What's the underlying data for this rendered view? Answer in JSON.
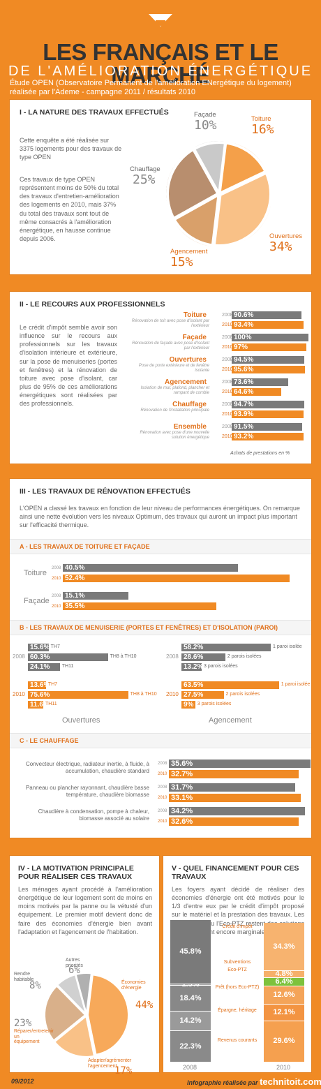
{
  "header": {
    "title_line1": "LES FRANÇAIS ET LE MARCHÉ",
    "title_line2": "DE L'AMÉLIORATION ÉNERGÉTIQUE",
    "subtitle_line1": "Étude OPEN (Observatoire Permanent de l'amélioration ENergétique du logement)",
    "subtitle_line2": "réalisée par l'Ademe - campagne 2011 / résultats 2010"
  },
  "section1": {
    "title": "I - LA NATURE DES TRAVAUX EFFECTUÉS",
    "para1": "Cette enquête a été réalisée sur 3375 logements pour des travaux de type OPEN",
    "para2": "Ces travaux de type OPEN représentent moins de 50% du total des travaux d'entretien-amélioration des logements en 2010, mais 37% du total des travaux sont tout de même consacrés à l'amélioration énergétique, en hausse continue depuis 2006."
  },
  "section2": {
    "title": "II - LE RECOURS AUX PROFESSIONNELS",
    "para": "Le crédit d'impôt semble avoir son influence sur le recours aux professionnels sur les travaux d'isolation intérieure et extérieure, sur la pose de menuiseries (portes et fenêtres) et la rénovation de toiture avec pose d'isolant, car plus de 95% de ces améliorations énergétiques sont réalisées par des professionnels.",
    "footnote": "Achats de prestations en %"
  },
  "section3": {
    "title": "III - LES TRAVAUX DE RÉNOVATION EFFECTUÉS",
    "intro": "L'OPEN a classé les travaux en fonction de leur niveau de performances énergétiques. On remarque ainsi une nette évolution vers les niveaux Optimum, des travaux qui auront un impact plus important sur l'efficacité thermique.",
    "sub_a": "A - LES TRAVAUX DE TOITURE ET FAÇADE",
    "sub_b": "B - LES TRAVAUX DE MENUISERIE (PORTES ET FENÊTRES) ET D'ISOLATION (PAROI)",
    "sub_c": "C - LE CHAUFFAGE",
    "ouvertures_label": "Ouvertures",
    "agencement_label": "Agencement"
  },
  "section4": {
    "title_line1": "IV - LA MOTIVATION PRINCIPALE",
    "title_line2": "POUR RÉALISER CES TRAVAUX",
    "para": "Les ménages ayant procédé à l'amélioration énergétique de leur logement sont de moins en moins motivés par la panne ou la vétusté d'un équipement. Le premier motif devient donc de faire des économies d'énergie bien avant l'adaptation et l'agencement de l'habitation."
  },
  "section5": {
    "title_line1": "V - QUEL FINANCEMENT POUR CES",
    "title_line2": "TRAVAUX",
    "para": "Les foyers ayant décidé de réaliser des économies d'énergie ont été motivés pour le 1/3 d'entre eux par le crédit d'impôt proposé sur le matériel et la prestation des travaux. Les subventions ou l'Eco-PTZ restent des solutions de financement encore marginales."
  },
  "footer": {
    "date": "09/2012",
    "credit": "Infographie réalisée par",
    "brand": "technitoit.com"
  },
  "colors": {
    "orange": "#f08a24",
    "dark_orange": "#e0701a",
    "grey": "#7a7a7a"
  },
  "chart_data": [
    {
      "id": "nature_travaux",
      "type": "pie",
      "labels": [
        "Toiture",
        "Ouvertures",
        "Agencement",
        "Chauffage",
        "Façade"
      ],
      "values": [
        16,
        34,
        15,
        25,
        10
      ],
      "display": [
        "16%",
        "34%",
        "15%",
        "25%",
        "10%"
      ]
    },
    {
      "id": "recours_pros",
      "type": "bar",
      "categories": [
        {
          "name": "Toiture",
          "desc": "Rénovation de toit avec pose d'isolant par l'extérieur"
        },
        {
          "name": "Façade",
          "desc": "Rénovation de façade avec pose d'isolant par l'extérieur"
        },
        {
          "name": "Ouvertures",
          "desc": "Pose de porte extérieure et de fenêtre isolante"
        },
        {
          "name": "Agencement",
          "desc": "Isolation de mur, plafond, plancher et rampant de comble"
        },
        {
          "name": "Chauffage",
          "desc": "Rénovation de l'installation principale"
        },
        {
          "name": "Ensemble",
          "desc": "Rénovation avec pose d'une nouvelle solution énergétique"
        }
      ],
      "series": [
        {
          "name": "2008",
          "values": [
            90.6,
            100,
            94.5,
            73.6,
            94.7,
            91.5
          ],
          "display": [
            "90.6%",
            "100%",
            "94.5%",
            "73.6%",
            "94.7%",
            "91.5%"
          ]
        },
        {
          "name": "2010",
          "values": [
            93.4,
            97,
            95.6,
            64.6,
            93.9,
            93.2
          ],
          "display": [
            "93.4%",
            "97%",
            "95.6%",
            "64.6%",
            "93.9%",
            "93.2%"
          ]
        }
      ],
      "xlabel": "Achats de prestations en %"
    },
    {
      "id": "toiture_facade",
      "type": "bar",
      "categories": [
        "Toiture",
        "Façade"
      ],
      "series": [
        {
          "name": "2008",
          "values": [
            40.5,
            15.1
          ],
          "display": [
            "40.5%",
            "15.1%"
          ]
        },
        {
          "name": "2010",
          "values": [
            52.4,
            35.5
          ],
          "display": [
            "52.4%",
            "35.5%"
          ]
        }
      ]
    },
    {
      "id": "ouvertures",
      "type": "bar",
      "categories": [
        "TH7",
        "TH8 à TH10",
        "TH11"
      ],
      "series": [
        {
          "name": "2008",
          "values": [
            15.6,
            60.3,
            24.1
          ],
          "display": [
            "15.6%",
            "60.3%",
            "24.1%"
          ]
        },
        {
          "name": "2010",
          "values": [
            13.6,
            75.6,
            11.6
          ],
          "display": [
            "13.6%",
            "75.6%",
            "11.6%"
          ]
        }
      ]
    },
    {
      "id": "agencement",
      "type": "bar",
      "categories": [
        "1 paroi isolée",
        "2 parois isolées",
        "3 parois isolées"
      ],
      "series": [
        {
          "name": "2008",
          "values": [
            58.2,
            28.6,
            13.2
          ],
          "display": [
            "58.2%",
            "28.6%",
            "13.2%"
          ]
        },
        {
          "name": "2010",
          "values": [
            63.5,
            27.5,
            9
          ],
          "display": [
            "63.5%",
            "27.5%",
            "9%"
          ]
        }
      ]
    },
    {
      "id": "chauffage",
      "type": "bar",
      "categories": [
        "Convecteur électrique, radiateur inertie, à fluide, à accumulation, chaudière standard",
        "Panneau ou plancher rayonnant, chaudière basse température, chaudière biomasse",
        "Chaudière à condensation, pompe à chaleur, biomasse associé au solaire"
      ],
      "series": [
        {
          "name": "2008",
          "values": [
            35.6,
            31.7,
            34.2
          ],
          "display": [
            "35.6%",
            "31.7%",
            "34.2%"
          ]
        },
        {
          "name": "2010",
          "values": [
            32.7,
            33.1,
            32.6
          ],
          "display": [
            "32.7%",
            "33.1%",
            "32.6%"
          ]
        }
      ]
    },
    {
      "id": "motivation",
      "type": "pie",
      "labels": [
        "Économies d'énergie",
        "Adapter/agrémenter l'agencement",
        "Réparer/entretenir un équipement",
        "Rendre habitable",
        "Autres priorités"
      ],
      "values": [
        44,
        17,
        23,
        8,
        6
      ],
      "display": [
        "44%",
        "17%",
        "23%",
        "8%",
        "6%"
      ]
    },
    {
      "id": "financement",
      "type": "bar",
      "stacked": true,
      "categories": [
        "2008",
        "2010"
      ],
      "series": [
        {
          "name": "Revenus courants",
          "values": [
            22.3,
            29.6
          ],
          "display": [
            "22.3%",
            "29.6%"
          ]
        },
        {
          "name": "Épargne, héritage",
          "values": [
            14.2,
            12.1
          ],
          "display": [
            "14.2%",
            "12.1%"
          ]
        },
        {
          "name": "Prêt (hors Eco-PTZ)",
          "values": [
            18.4,
            12.6
          ],
          "display": [
            "18.4%",
            "12.6%"
          ]
        },
        {
          "name": "Eco-PTZ",
          "values": [
            0,
            6.4
          ],
          "display": [
            "",
            "6.4%"
          ]
        },
        {
          "name": "Subventions",
          "values": [
            1.3,
            4.8
          ],
          "display": [
            "1.3%",
            "4.8%"
          ]
        },
        {
          "name": "Crédit d'impôt",
          "values": [
            45.8,
            34.3
          ],
          "display": [
            "45.8%",
            "34.3%"
          ]
        }
      ]
    }
  ]
}
